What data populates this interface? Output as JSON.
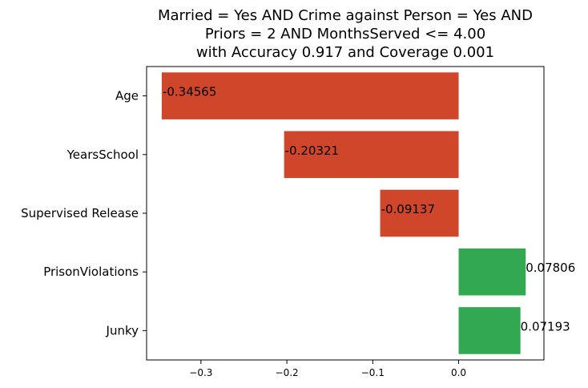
{
  "chart_data": {
    "type": "bar",
    "orientation": "horizontal",
    "title_lines": [
      "Married = Yes AND Crime against Person = Yes AND",
      "Priors = 2 AND MonthsServed <= 4.00",
      "with Accuracy 0.917 and Coverage 0.001"
    ],
    "categories": [
      "Age",
      "YearsSchool",
      "Supervised Release",
      "PrisonViolations",
      "Junky"
    ],
    "values": [
      -0.34565,
      -0.20321,
      -0.09137,
      0.07806,
      0.07193
    ],
    "value_labels": [
      "-0.34565",
      "-0.20321",
      "-0.09137",
      "0.07806",
      "0.07193"
    ],
    "xticks": [
      -0.3,
      -0.2,
      -0.1,
      0.0
    ],
    "xtick_labels": [
      "−0.3",
      "−0.2",
      "−0.1",
      "0.0"
    ],
    "xlim": [
      -0.3633,
      0.0993
    ],
    "xlabel": "",
    "ylabel": "",
    "grid": false,
    "colors": {
      "negative": "#cf462b",
      "positive": "#33a853"
    }
  }
}
